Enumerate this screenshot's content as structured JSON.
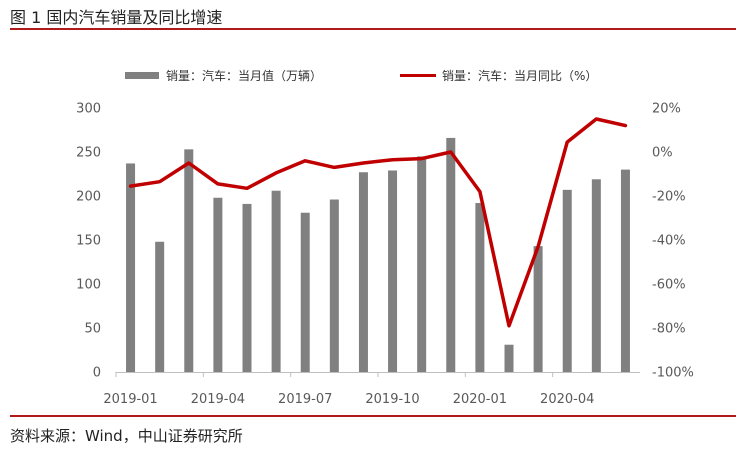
{
  "figure": {
    "title": "图 1  国内汽车销量及同比增速",
    "source": "资料来源：Wind，中山证券研究所"
  },
  "colors": {
    "bar": "#808080",
    "line": "#c00000",
    "rule": "#b01a1a"
  },
  "chart_data": {
    "type": "bar",
    "x": [
      "2019-01",
      "2019-02",
      "2019-03",
      "2019-04",
      "2019-05",
      "2019-06",
      "2019-07",
      "2019-08",
      "2019-09",
      "2019-10",
      "2019-11",
      "2019-12",
      "2020-01",
      "2020-02",
      "2020-03",
      "2020-04",
      "2020-05",
      "2020-06"
    ],
    "x_tick_labels": [
      "2019-01",
      "2019-04",
      "2019-07",
      "2019-10",
      "2020-01",
      "2020-04"
    ],
    "series": [
      {
        "name": "销量：汽车：当月值（万辆）",
        "type": "bar",
        "axis": "left",
        "values": [
          237,
          148,
          253,
          198,
          191,
          206,
          181,
          196,
          227,
          229,
          245,
          266,
          192,
          31,
          143,
          207,
          219,
          230
        ]
      },
      {
        "name": "销量：汽车：当月同比（%）",
        "type": "line",
        "axis": "right",
        "values": [
          -15.5,
          -13.5,
          -5,
          -14.5,
          -16.5,
          -9.5,
          -4,
          -7,
          -5,
          -3.5,
          -3,
          0,
          -18,
          -79,
          -43,
          4.5,
          15,
          12
        ]
      }
    ],
    "left_axis": {
      "ylim": [
        0,
        300
      ],
      "ticks": [
        0,
        50,
        100,
        150,
        200,
        250,
        300
      ]
    },
    "right_axis": {
      "ylim": [
        -100,
        20
      ],
      "ticks": [
        -100,
        -80,
        -60,
        -40,
        -20,
        0,
        20
      ],
      "tick_labels": [
        "-100%",
        "-80%",
        "-60%",
        "-40%",
        "-20%",
        "0%",
        "20%"
      ]
    },
    "legend_position": "top",
    "grid": false
  }
}
